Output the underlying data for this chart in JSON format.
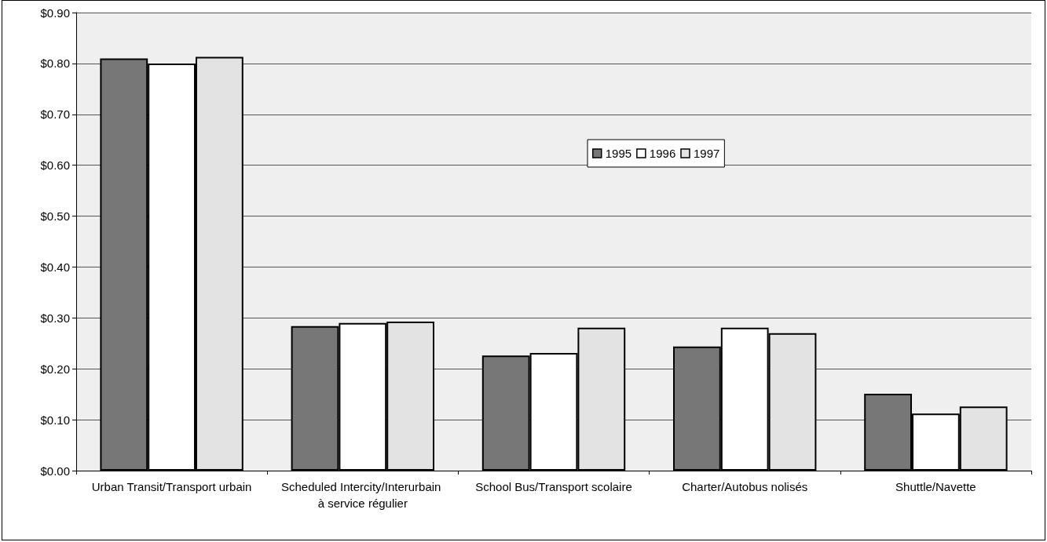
{
  "chart_data": {
    "type": "bar",
    "categories": [
      "Urban Transit/Transport urbain",
      "Scheduled Intercity/Interurbain à service régulier",
      "School Bus/Transport scolaire",
      "Charter/Autobus nolisés",
      "Shuttle/Navette"
    ],
    "series": [
      {
        "name": "1995",
        "color": "#777777",
        "values": [
          0.81,
          0.284,
          0.226,
          0.244,
          0.151
        ]
      },
      {
        "name": "1996",
        "color": "#ffffff",
        "values": [
          0.8,
          0.29,
          0.231,
          0.281,
          0.112
        ]
      },
      {
        "name": "1997",
        "color": "#e3e3e3",
        "values": [
          0.813,
          0.293,
          0.281,
          0.27,
          0.126
        ]
      }
    ],
    "ylim": [
      0,
      0.9
    ],
    "yticks": [
      {
        "value": 0,
        "label": "$0.00"
      },
      {
        "value": 0.1,
        "label": "$0.10"
      },
      {
        "value": 0.2,
        "label": "$0.20"
      },
      {
        "value": 0.3,
        "label": "$0.30"
      },
      {
        "value": 0.4,
        "label": "$0.40"
      },
      {
        "value": 0.5,
        "label": "$0.50"
      },
      {
        "value": 0.6,
        "label": "$0.60"
      },
      {
        "value": 0.7,
        "label": "$0.70"
      },
      {
        "value": 0.8,
        "label": "$0.80"
      },
      {
        "value": 0.9,
        "label": "$0.90"
      }
    ],
    "grid": "y",
    "legend": "top"
  }
}
